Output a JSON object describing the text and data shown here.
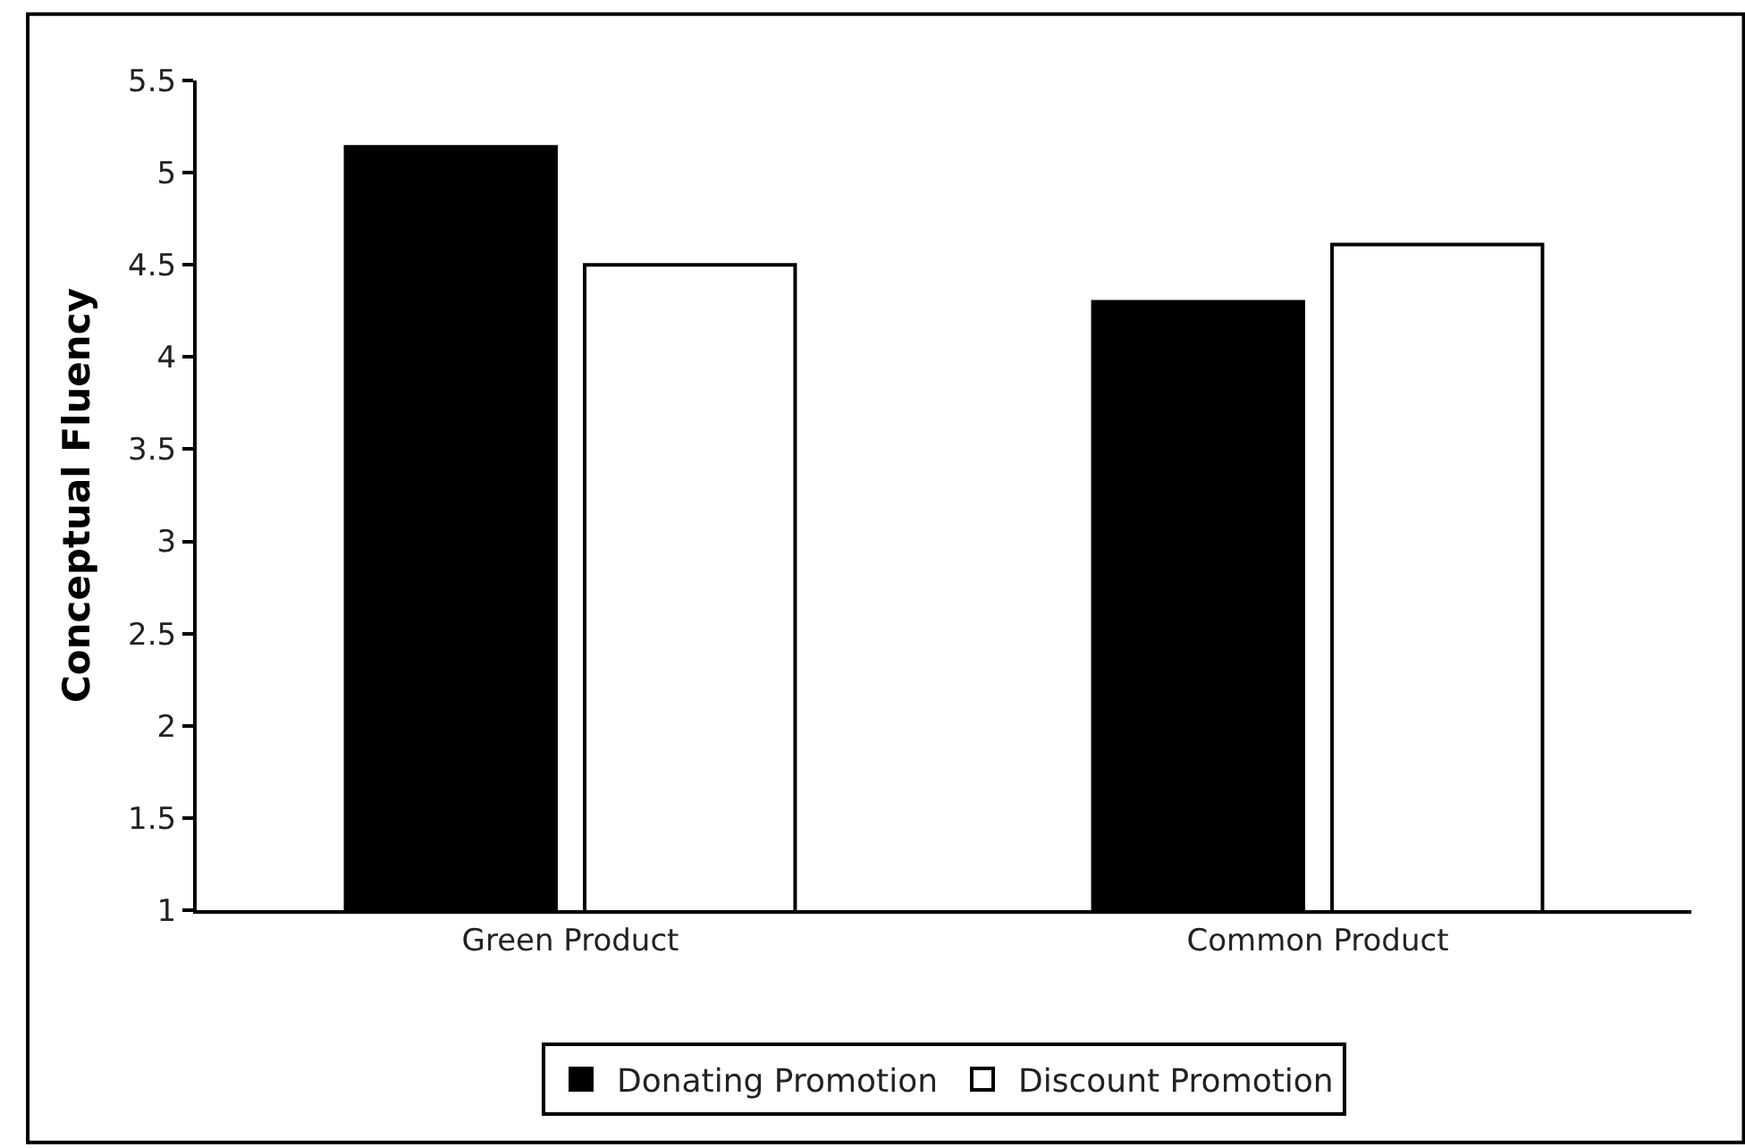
{
  "chart_data": {
    "type": "bar",
    "ylabel": "Conceptual Fluency",
    "categories": [
      "Green Product",
      "Common Product"
    ],
    "series": [
      {
        "name": "Donating Promotion",
        "color": "#000000",
        "values": [
          5.14,
          4.3
        ]
      },
      {
        "name": "Discount Promotion",
        "color": "#ffffff",
        "values": [
          4.5,
          4.61
        ]
      }
    ],
    "ylim": [
      1,
      5.5
    ],
    "yticks": [
      1,
      1.5,
      2,
      2.5,
      3,
      3.5,
      4,
      4.5,
      5,
      5.5
    ],
    "legend": "bottom"
  }
}
